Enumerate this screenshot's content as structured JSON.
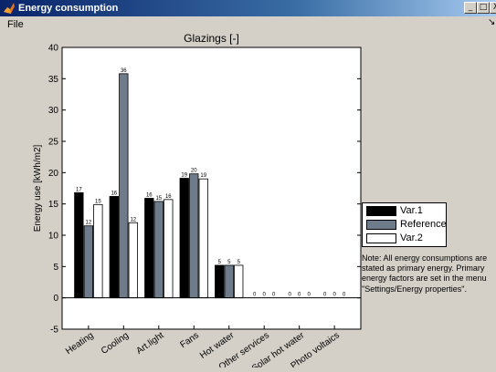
{
  "window": {
    "title": "Energy consumption",
    "app_icon": "matlab-figure-icon",
    "minimize_glyph": "_",
    "restore_glyph": "□",
    "close_glyph": "X"
  },
  "menu": {
    "file_label": "File",
    "toolbar_arrow": "↘"
  },
  "chart_data": {
    "type": "bar",
    "title": "Glazings [-]",
    "ylabel": "Energy use [kWh/m2]",
    "xlabel": "",
    "ylim": [
      -5,
      40
    ],
    "yticks": [
      -5,
      0,
      5,
      10,
      15,
      20,
      25,
      30,
      35,
      40
    ],
    "grid": false,
    "legend_position": "right",
    "categories": [
      "Heating",
      "Cooling",
      "Art.light",
      "Fans",
      "Hot water",
      "Other services",
      "Solar hot water",
      "Photo voltaics"
    ],
    "series": [
      {
        "name": "Var.1",
        "color": "#000000",
        "values": [
          16.8,
          16.2,
          15.9,
          19.1,
          5.2,
          0,
          0,
          0
        ],
        "labels": [
          "17",
          "16",
          "16",
          "19",
          "5",
          "0",
          "0",
          "0"
        ]
      },
      {
        "name": "Reference",
        "color": "#6e7b8b",
        "values": [
          11.5,
          35.8,
          15.4,
          19.8,
          5.2,
          0,
          0,
          0
        ],
        "labels": [
          "12",
          "36",
          "15",
          "20",
          "5",
          "0",
          "0",
          "0"
        ]
      },
      {
        "name": "Var.2",
        "color": "#ffffff",
        "values": [
          14.9,
          12.0,
          15.7,
          19.0,
          5.2,
          0,
          0,
          0
        ],
        "labels": [
          "15",
          "12",
          "16",
          "19",
          "5",
          "0",
          "0",
          "0"
        ]
      }
    ]
  },
  "note": "Note: All energy consumptions are stated as primary energy. Primary energy factors are set in the menu \"Settings/Energy properties\"."
}
